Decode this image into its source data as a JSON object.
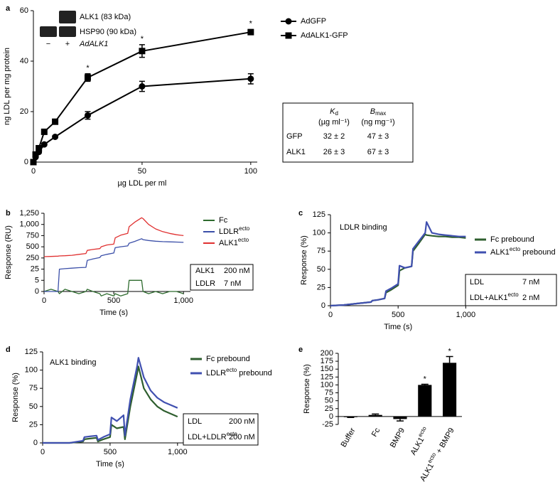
{
  "chart_data": [
    {
      "type": "line",
      "panel_label": "a",
      "xlabel": "µg LDL per ml",
      "ylabel": "ng LDL per mg protein",
      "x": [
        0,
        1,
        2.5,
        5,
        10,
        25,
        50,
        100
      ],
      "series": [
        {
          "name": "AdGFP",
          "color": "#000000",
          "marker": "circle",
          "values": [
            0,
            2,
            4,
            7,
            10,
            18.5,
            30,
            33
          ],
          "errors": [
            0,
            0.5,
            0.5,
            0.5,
            0.5,
            1.5,
            2,
            2
          ]
        },
        {
          "name": "AdALK1-GFP",
          "color": "#000000",
          "marker": "square",
          "values": [
            0,
            3,
            5.5,
            12,
            16,
            33.5,
            44,
            51.5
          ],
          "errors": [
            0,
            0.5,
            0.5,
            0.5,
            0.5,
            1.5,
            2.5,
            1
          ]
        }
      ],
      "annotations": [
        {
          "text": "*",
          "x": 25,
          "series": 1
        },
        {
          "text": "*",
          "x": 50,
          "series": 1
        },
        {
          "text": "*",
          "x": 100,
          "series": 1
        }
      ],
      "xlim": [
        0,
        103
      ],
      "xticks": [
        0,
        50,
        100
      ],
      "ylim": [
        0,
        60
      ],
      "yticks": [
        0,
        20,
        40,
        60
      ],
      "inset": {
        "bands": [
          "ALK1 (83 kDa)",
          "HSP90 (90 kDa)"
        ],
        "lanes": [
          "−",
          "+"
        ],
        "lane_label": "AdALK1"
      },
      "table": {
        "columns": [
          {
            "symbol": "K",
            "subscript": "d",
            "unit": "(µg ml⁻¹)"
          },
          {
            "symbol": "B",
            "subscript": "max",
            "unit": "(ng mg⁻¹)"
          }
        ],
        "rows": [
          [
            "GFP",
            "32 ± 2",
            "47 ± 3"
          ],
          [
            "ALK1",
            "26 ± 3",
            "67 ± 3"
          ]
        ]
      }
    },
    {
      "type": "line",
      "panel_label": "b",
      "xlabel": "Time (s)",
      "ylabel": "Response (RU)",
      "yscale": "broken",
      "x": [
        0,
        50,
        100,
        110,
        150,
        200,
        250,
        300,
        310,
        350,
        400,
        410,
        450,
        500,
        510,
        550,
        600,
        610,
        650,
        700,
        710,
        750,
        800,
        850,
        900,
        950,
        1000
      ],
      "series": [
        {
          "name": "Fc",
          "color": "#2e6b2e",
          "values": [
            0,
            1,
            0,
            -1,
            1,
            0,
            -1,
            0,
            1,
            0,
            -1,
            -2,
            -1,
            -2,
            -1,
            -2,
            -1,
            5,
            5,
            5,
            0,
            -1,
            0,
            -1,
            0,
            0,
            -1
          ]
        },
        {
          "name": "LDLRecto",
          "color": "#3b4fa8",
          "values": [
            0,
            0,
            0,
            25,
            35,
            45,
            55,
            60,
            200,
            230,
            260,
            300,
            330,
            360,
            480,
            500,
            520,
            580,
            620,
            680,
            660,
            640,
            625,
            615,
            610,
            605,
            600
          ]
        },
        {
          "name": "ALK1ecto",
          "color": "#e03030",
          "values": [
            280,
            285,
            290,
            295,
            300,
            310,
            330,
            350,
            420,
            440,
            460,
            500,
            540,
            560,
            700,
            760,
            800,
            950,
            1050,
            1150,
            1130,
            1000,
            900,
            840,
            800,
            770,
            750
          ]
        }
      ],
      "conditions": [
        [
          "ALK1",
          "200 nM"
        ],
        [
          "LDLR",
          "7 nM"
        ]
      ],
      "xlim": [
        0,
        1050
      ],
      "xticks": [
        0,
        500,
        {
          "value": 1000,
          "label": "1,000"
        }
      ],
      "ylim": [
        0,
        1250
      ],
      "yticks": [
        0,
        5,
        25,
        250,
        500,
        750,
        {
          "value": 1000,
          "label": "1,000"
        },
        {
          "value": 1250,
          "label": "1,250"
        }
      ]
    },
    {
      "type": "line",
      "panel_label": "c",
      "title": "LDLR binding",
      "xlabel": "Time (s)",
      "ylabel": "Response (%)",
      "x": [
        0,
        100,
        200,
        300,
        310,
        350,
        400,
        410,
        450,
        500,
        510,
        550,
        600,
        610,
        650,
        700,
        710,
        750,
        800,
        850,
        900,
        950,
        1000
      ],
      "series": [
        {
          "name": "Fc prebound",
          "color": "#2e5e2e",
          "values": [
            0,
            1,
            3,
            5,
            7,
            8,
            10,
            18,
            22,
            28,
            48,
            52,
            54,
            75,
            85,
            98,
            97,
            96,
            95,
            95,
            94,
            94,
            93
          ]
        },
        {
          "name": "ALK1ecto prebound",
          "color": "#4050b0",
          "values": [
            0,
            1,
            3,
            5,
            7,
            8,
            10,
            20,
            24,
            30,
            55,
            52,
            54,
            78,
            88,
            100,
            115,
            100,
            98,
            97,
            96,
            95,
            95
          ]
        }
      ],
      "conditions": [
        [
          "LDL",
          "7 nM"
        ],
        [
          "LDL+ALK1ecto",
          "2 nM"
        ]
      ],
      "xlim": [
        0,
        1040
      ],
      "xticks": [
        0,
        500,
        {
          "value": 1000,
          "label": "1,000"
        }
      ],
      "ylim": [
        0,
        125
      ],
      "yticks": [
        0,
        25,
        50,
        75,
        100,
        125
      ]
    },
    {
      "type": "line",
      "panel_label": "d",
      "title": "ALK1 binding",
      "xlabel": "Time (s)",
      "ylabel": "Response (%)",
      "x": [
        0,
        100,
        200,
        300,
        310,
        350,
        400,
        410,
        450,
        500,
        510,
        550,
        600,
        610,
        650,
        700,
        710,
        750,
        800,
        850,
        900,
        950,
        1000
      ],
      "series": [
        {
          "name": "Fc prebound",
          "color": "#2e5e2e",
          "values": [
            0,
            0,
            0,
            2,
            5,
            6,
            7,
            2,
            5,
            8,
            25,
            20,
            22,
            5,
            50,
            95,
            105,
            75,
            60,
            50,
            44,
            40,
            36
          ]
        },
        {
          "name": "LDLRecto prebound",
          "color": "#4050b0",
          "values": [
            0,
            0,
            0,
            3,
            8,
            9,
            10,
            4,
            8,
            12,
            35,
            30,
            38,
            10,
            60,
            105,
            117,
            90,
            72,
            62,
            56,
            52,
            48
          ]
        }
      ],
      "conditions": [
        [
          "LDL",
          "200 nM"
        ],
        [
          "LDL+LDLRecto",
          "200 nM"
        ]
      ],
      "xlim": [
        0,
        1080
      ],
      "xticks": [
        0,
        500,
        {
          "value": 1000,
          "label": "1,000"
        }
      ],
      "ylim": [
        0,
        125
      ],
      "yticks": [
        0,
        25,
        50,
        75,
        100,
        125
      ]
    },
    {
      "type": "bar",
      "panel_label": "e",
      "ylabel": "Response (%)",
      "color": "#000000",
      "categories": [
        "Buffer",
        "Fc",
        "BMP9",
        "ALK1ecto",
        "ALK1ecto + BMP9"
      ],
      "values": [
        -2,
        5,
        -8,
        100,
        170
      ],
      "errors": [
        1,
        3,
        6,
        2,
        20
      ],
      "annotations": [
        {
          "text": "*",
          "x": 3
        },
        {
          "text": "*",
          "x": 4
        }
      ],
      "ylim": [
        -25,
        200
      ],
      "yticks": [
        -25,
        0,
        25,
        50,
        75,
        100,
        125,
        150,
        175,
        200
      ]
    }
  ]
}
